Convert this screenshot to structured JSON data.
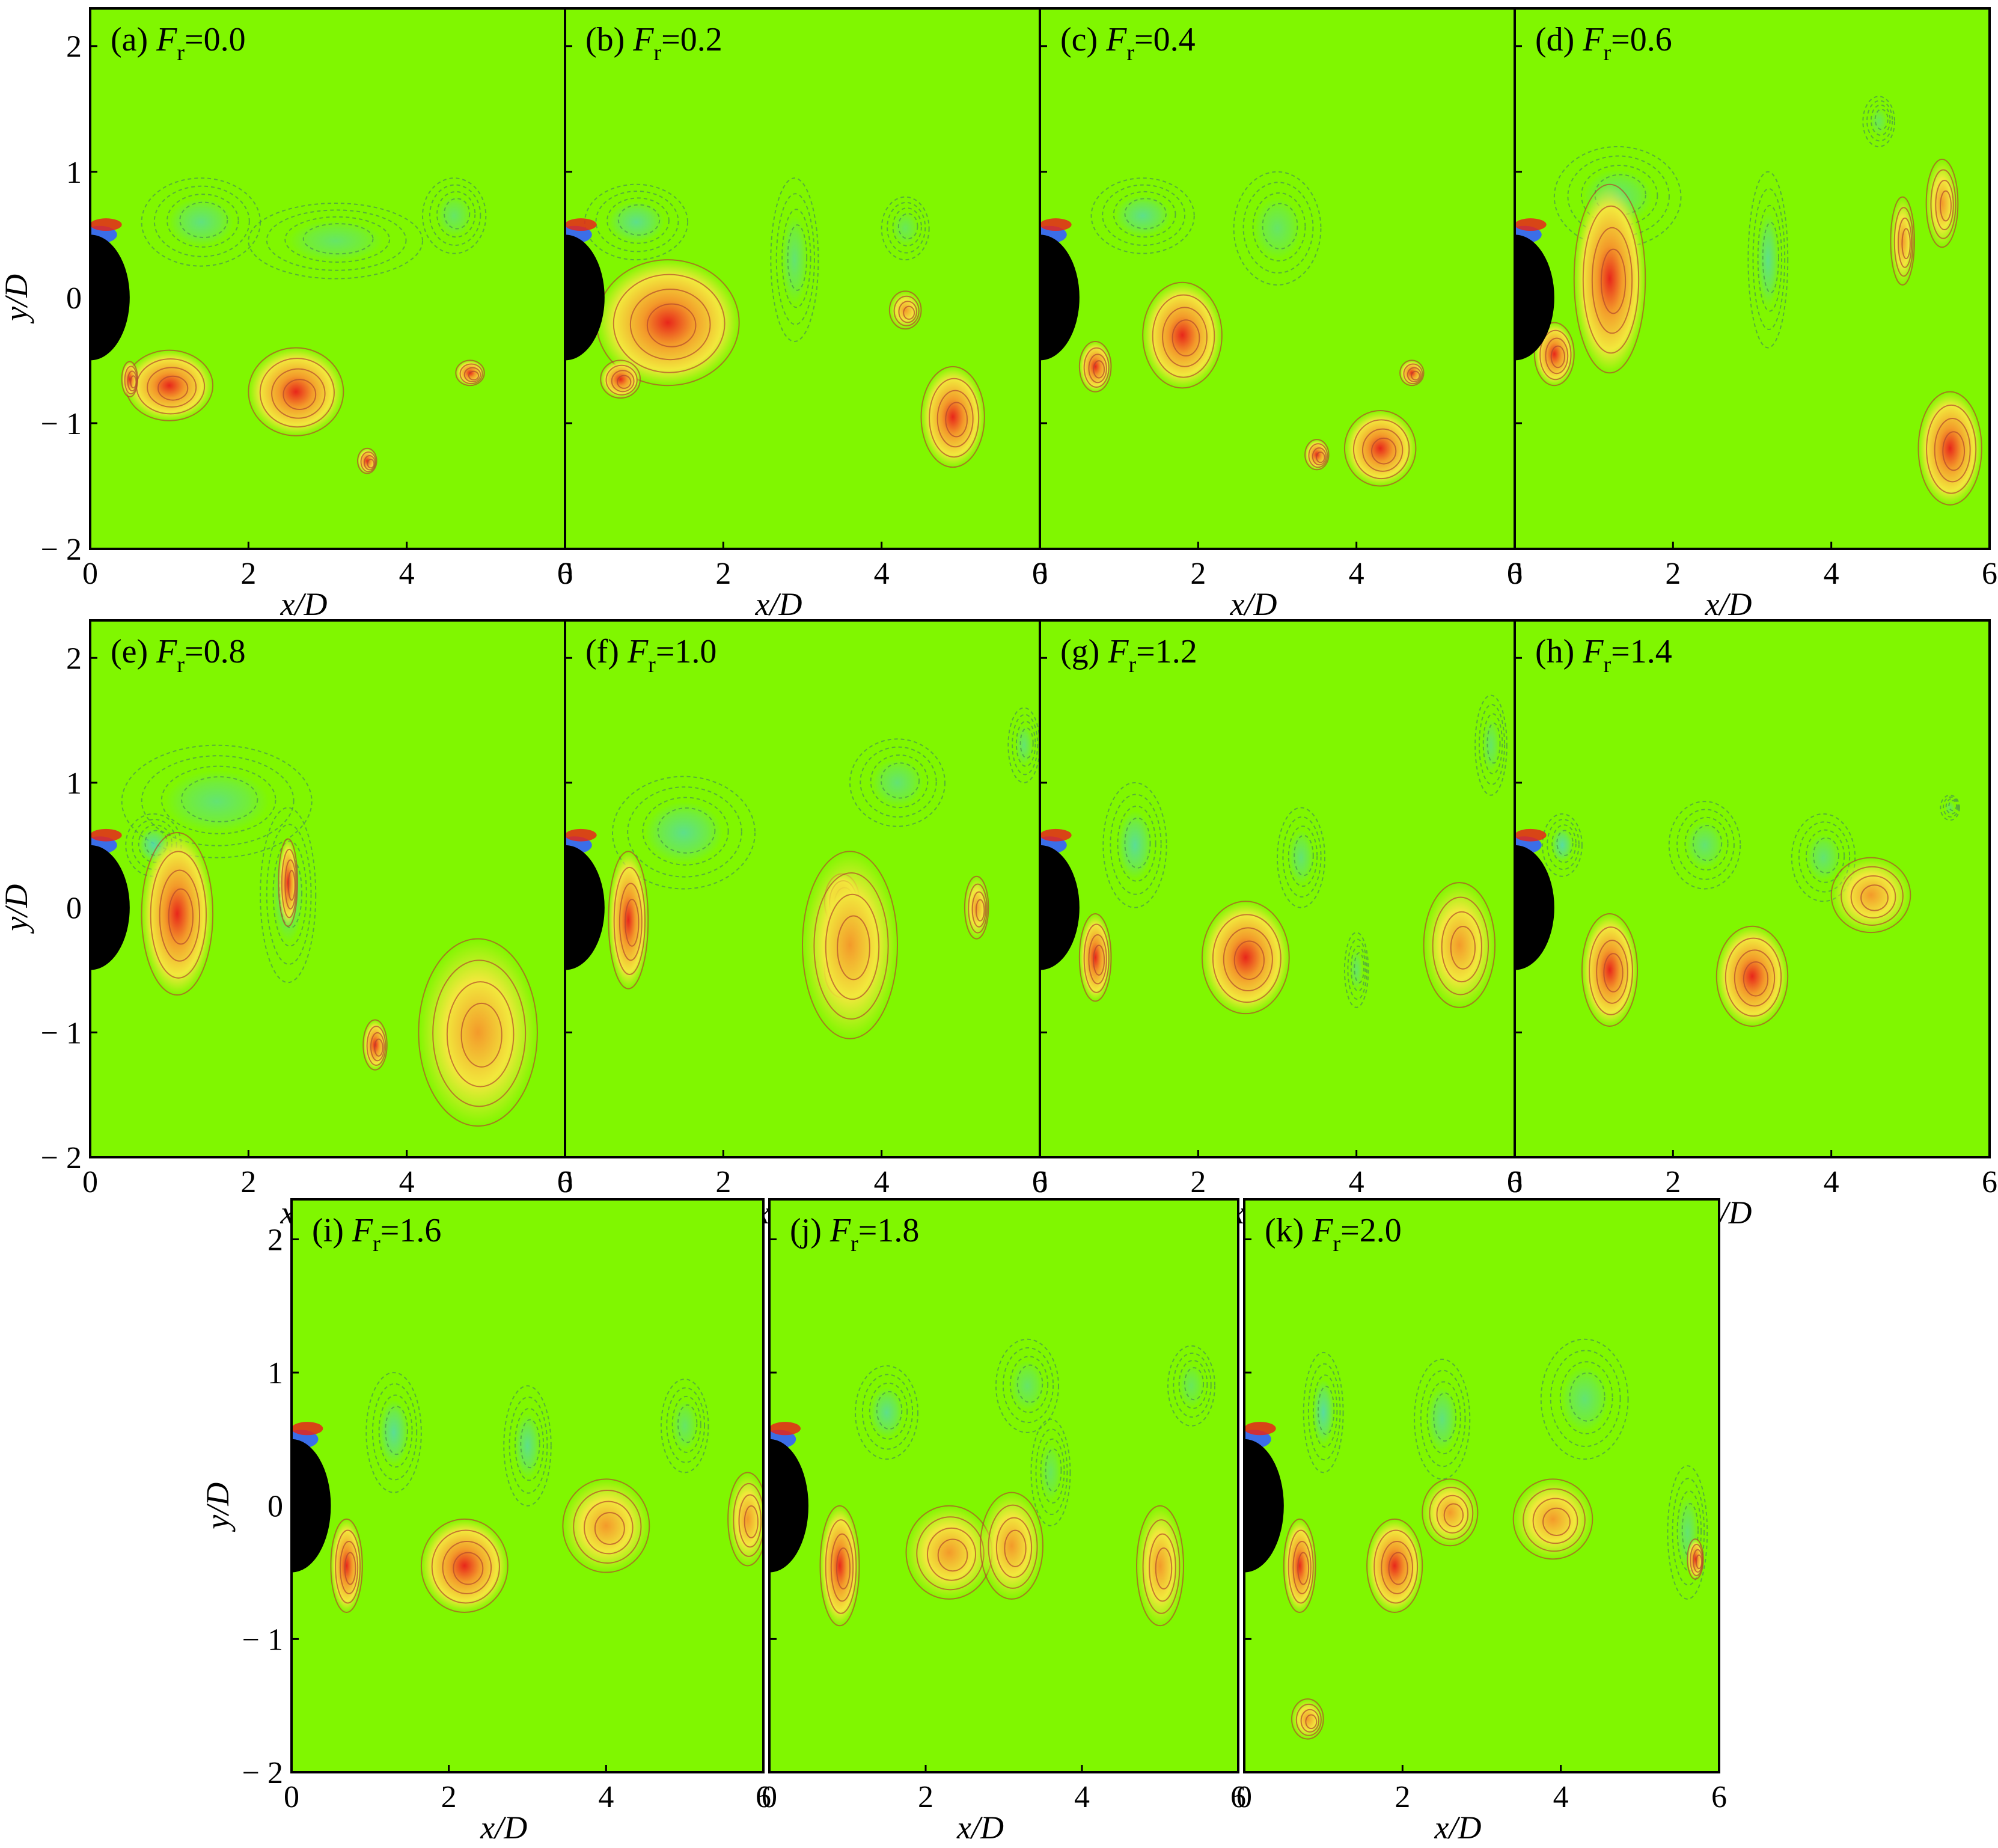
{
  "figure": {
    "xlabel_text": "x/D",
    "ylabel_text": "y/D",
    "x_ticks": [
      "0",
      "2",
      "4",
      "6"
    ],
    "y_ticks": [
      "2",
      "1",
      "0",
      "− 1",
      "− 2"
    ],
    "colors": {
      "background": "#80f700",
      "positive_strong": "#e8261a",
      "positive_mid": "#f39a2a",
      "positive_weak": "#f2e83c",
      "negative": "#4fd6c2",
      "negative_strong": "#3b6ee8",
      "cylinder": "#000000",
      "contour_pos": "#b4482c",
      "contour_neg": "#4b9a4b"
    }
  },
  "chart_data": [
    {
      "id": "a",
      "tag": "(a)",
      "var": "F",
      "sub": "r",
      "val": "=0.0",
      "type": "heatmap",
      "xlim": [
        0,
        6
      ],
      "ylim": [
        -2,
        2.3
      ],
      "pos": [
        [
          1.0,
          -0.7,
          0.55,
          0.28,
          0.9
        ],
        [
          2.6,
          -0.75,
          0.6,
          0.35,
          0.8
        ],
        [
          3.5,
          -1.3,
          0.12,
          0.1,
          1.0
        ],
        [
          4.8,
          -0.6,
          0.18,
          0.1,
          1.0
        ],
        [
          0.5,
          -0.65,
          0.1,
          0.14,
          1.0
        ]
      ],
      "neg": [
        [
          1.4,
          0.6,
          0.75,
          0.35,
          0.5
        ],
        [
          3.1,
          0.45,
          1.1,
          0.3,
          0.3
        ],
        [
          4.6,
          0.65,
          0.4,
          0.3,
          0.3
        ]
      ]
    },
    {
      "id": "b",
      "tag": "(b)",
      "var": "F",
      "sub": "r",
      "val": "=0.2",
      "type": "heatmap",
      "xlim": [
        0,
        6
      ],
      "ylim": [
        -2,
        2.3
      ],
      "pos": [
        [
          1.3,
          -0.2,
          0.9,
          0.5,
          0.8
        ],
        [
          0.7,
          -0.65,
          0.25,
          0.15,
          1.0
        ],
        [
          4.9,
          -0.95,
          0.4,
          0.4,
          1.0
        ],
        [
          4.3,
          -0.1,
          0.2,
          0.15,
          0.6
        ]
      ],
      "neg": [
        [
          0.9,
          0.6,
          0.65,
          0.3,
          0.6
        ],
        [
          2.9,
          0.3,
          0.3,
          0.65,
          0.4
        ],
        [
          4.3,
          0.55,
          0.3,
          0.25,
          0.2
        ]
      ]
    },
    {
      "id": "c",
      "tag": "(c)",
      "var": "F",
      "sub": "r",
      "val": "=0.4",
      "type": "heatmap",
      "xlim": [
        0,
        6
      ],
      "ylim": [
        -2,
        2.3
      ],
      "pos": [
        [
          1.8,
          -0.3,
          0.5,
          0.42,
          0.8
        ],
        [
          0.7,
          -0.55,
          0.2,
          0.2,
          1.0
        ],
        [
          4.3,
          -1.2,
          0.45,
          0.3,
          0.9
        ],
        [
          3.5,
          -1.25,
          0.15,
          0.12,
          1.0
        ],
        [
          4.7,
          -0.6,
          0.15,
          0.1,
          1.0
        ]
      ],
      "neg": [
        [
          1.3,
          0.65,
          0.65,
          0.3,
          0.6
        ],
        [
          3.0,
          0.55,
          0.55,
          0.45,
          0.3
        ]
      ]
    },
    {
      "id": "d",
      "tag": "(d)",
      "var": "F",
      "sub": "r",
      "val": "=0.6",
      "type": "heatmap",
      "xlim": [
        0,
        6
      ],
      "ylim": [
        -2,
        2.3
      ],
      "pos": [
        [
          1.2,
          0.15,
          0.45,
          0.75,
          0.9
        ],
        [
          0.5,
          -0.45,
          0.25,
          0.25,
          1.0
        ],
        [
          5.4,
          0.75,
          0.2,
          0.35,
          0.6
        ],
        [
          4.9,
          0.45,
          0.15,
          0.35,
          0.6
        ],
        [
          5.5,
          -1.2,
          0.4,
          0.45,
          0.8
        ]
      ],
      "neg": [
        [
          1.3,
          0.8,
          0.8,
          0.4,
          0.4
        ],
        [
          3.2,
          0.3,
          0.25,
          0.7,
          0.6
        ],
        [
          4.6,
          1.4,
          0.2,
          0.2,
          0.2
        ]
      ]
    },
    {
      "id": "e",
      "tag": "(e)",
      "var": "F",
      "sub": "r",
      "val": "=0.8",
      "type": "heatmap",
      "xlim": [
        0,
        6
      ],
      "ylim": [
        -2,
        2.3
      ],
      "pos": [
        [
          1.1,
          -0.05,
          0.45,
          0.65,
          1.0
        ],
        [
          2.5,
          0.2,
          0.12,
          0.35,
          1.0
        ],
        [
          4.9,
          -1.0,
          0.75,
          0.75,
          0.6
        ],
        [
          3.6,
          -1.1,
          0.15,
          0.2,
          0.8
        ]
      ],
      "neg": [
        [
          1.6,
          0.85,
          1.2,
          0.45,
          0.4
        ],
        [
          2.5,
          0.1,
          0.35,
          0.7,
          0.6
        ],
        [
          0.8,
          0.5,
          0.35,
          0.25,
          0.8
        ]
      ]
    },
    {
      "id": "f",
      "tag": "(f)",
      "var": "F",
      "sub": "r",
      "val": "=1.0",
      "type": "heatmap",
      "xlim": [
        0,
        6
      ],
      "ylim": [
        -2,
        2.3
      ],
      "pos": [
        [
          0.8,
          -0.1,
          0.25,
          0.55,
          1.0
        ],
        [
          3.5,
          0.05,
          0.22,
          0.22,
          1.0
        ],
        [
          3.5,
          -0.5,
          0.22,
          0.22,
          1.0
        ],
        [
          3.6,
          -0.3,
          0.6,
          0.75,
          0.6
        ],
        [
          5.2,
          0.0,
          0.15,
          0.25,
          0.6
        ]
      ],
      "neg": [
        [
          1.5,
          0.6,
          0.9,
          0.45,
          0.6
        ],
        [
          4.2,
          1.0,
          0.6,
          0.35,
          0.4
        ],
        [
          5.8,
          1.3,
          0.2,
          0.3,
          0.4
        ]
      ]
    },
    {
      "id": "g",
      "tag": "(g)",
      "var": "F",
      "sub": "r",
      "val": "=1.2",
      "type": "heatmap",
      "xlim": [
        0,
        6
      ],
      "ylim": [
        -2,
        2.3
      ],
      "pos": [
        [
          0.7,
          -0.4,
          0.2,
          0.35,
          1.0
        ],
        [
          2.6,
          -0.4,
          0.55,
          0.45,
          0.8
        ],
        [
          5.3,
          -0.3,
          0.45,
          0.5,
          0.7
        ]
      ],
      "neg": [
        [
          1.2,
          0.5,
          0.4,
          0.5,
          0.7
        ],
        [
          3.3,
          0.4,
          0.3,
          0.4,
          0.4
        ],
        [
          4.0,
          -0.5,
          0.15,
          0.3,
          0.3
        ],
        [
          5.7,
          1.3,
          0.2,
          0.4,
          0.3
        ]
      ]
    },
    {
      "id": "h",
      "tag": "(h)",
      "var": "F",
      "sub": "r",
      "val": "=1.4",
      "type": "heatmap",
      "xlim": [
        0,
        6
      ],
      "ylim": [
        -2,
        2.3
      ],
      "pos": [
        [
          1.2,
          -0.5,
          0.35,
          0.45,
          1.0
        ],
        [
          3.0,
          -0.55,
          0.45,
          0.4,
          0.9
        ],
        [
          4.5,
          0.1,
          0.5,
          0.3,
          0.6
        ]
      ],
      "neg": [
        [
          0.6,
          0.5,
          0.25,
          0.25,
          0.8
        ],
        [
          2.4,
          0.5,
          0.45,
          0.35,
          0.4
        ],
        [
          3.9,
          0.4,
          0.4,
          0.35,
          0.4
        ],
        [
          5.5,
          0.8,
          0.12,
          0.1,
          0.2
        ]
      ]
    },
    {
      "id": "i",
      "tag": "(i)",
      "var": "F",
      "sub": "r",
      "val": "=1.6",
      "type": "heatmap",
      "xlim": [
        0,
        6
      ],
      "ylim": [
        -2,
        2.3
      ],
      "pos": [
        [
          0.7,
          -0.45,
          0.2,
          0.35,
          1.0
        ],
        [
          2.2,
          -0.45,
          0.55,
          0.35,
          1.0
        ],
        [
          4.0,
          -0.15,
          0.55,
          0.35,
          0.6
        ],
        [
          5.8,
          -0.1,
          0.25,
          0.35,
          0.6
        ]
      ],
      "neg": [
        [
          1.3,
          0.55,
          0.35,
          0.45,
          0.7
        ],
        [
          3.0,
          0.45,
          0.3,
          0.45,
          0.6
        ],
        [
          5.0,
          0.6,
          0.3,
          0.35,
          0.3
        ]
      ]
    },
    {
      "id": "j",
      "tag": "(j)",
      "var": "F",
      "sub": "r",
      "val": "=1.8",
      "type": "heatmap",
      "xlim": [
        0,
        6
      ],
      "ylim": [
        -2,
        2.3
      ],
      "pos": [
        [
          0.9,
          -0.45,
          0.25,
          0.45,
          1.0
        ],
        [
          2.3,
          -0.35,
          0.55,
          0.35,
          0.7
        ],
        [
          3.1,
          -0.3,
          0.4,
          0.4,
          0.6
        ],
        [
          5.0,
          -0.45,
          0.3,
          0.45,
          0.6
        ]
      ],
      "neg": [
        [
          1.5,
          0.7,
          0.4,
          0.35,
          0.6
        ],
        [
          3.3,
          0.9,
          0.4,
          0.35,
          0.3
        ],
        [
          3.6,
          0.25,
          0.25,
          0.4,
          0.2
        ],
        [
          5.4,
          0.9,
          0.3,
          0.3,
          0.2
        ]
      ]
    },
    {
      "id": "k",
      "tag": "(k)",
      "var": "F",
      "sub": "r",
      "val": "=2.0",
      "type": "heatmap",
      "xlim": [
        0,
        6
      ],
      "ylim": [
        -2,
        2.3
      ],
      "pos": [
        [
          0.7,
          -0.45,
          0.2,
          0.35,
          1.0
        ],
        [
          1.9,
          -0.45,
          0.35,
          0.35,
          1.0
        ],
        [
          2.6,
          -0.05,
          0.35,
          0.25,
          0.7
        ],
        [
          3.9,
          -0.1,
          0.5,
          0.3,
          0.6
        ],
        [
          5.7,
          -0.4,
          0.1,
          0.15,
          0.9
        ],
        [
          0.8,
          -1.6,
          0.2,
          0.15,
          0.3
        ]
      ],
      "neg": [
        [
          1.0,
          0.7,
          0.25,
          0.45,
          0.8
        ],
        [
          2.5,
          0.65,
          0.35,
          0.45,
          0.5
        ],
        [
          4.3,
          0.8,
          0.55,
          0.45,
          0.4
        ],
        [
          5.6,
          -0.2,
          0.25,
          0.5,
          0.4
        ]
      ]
    }
  ]
}
